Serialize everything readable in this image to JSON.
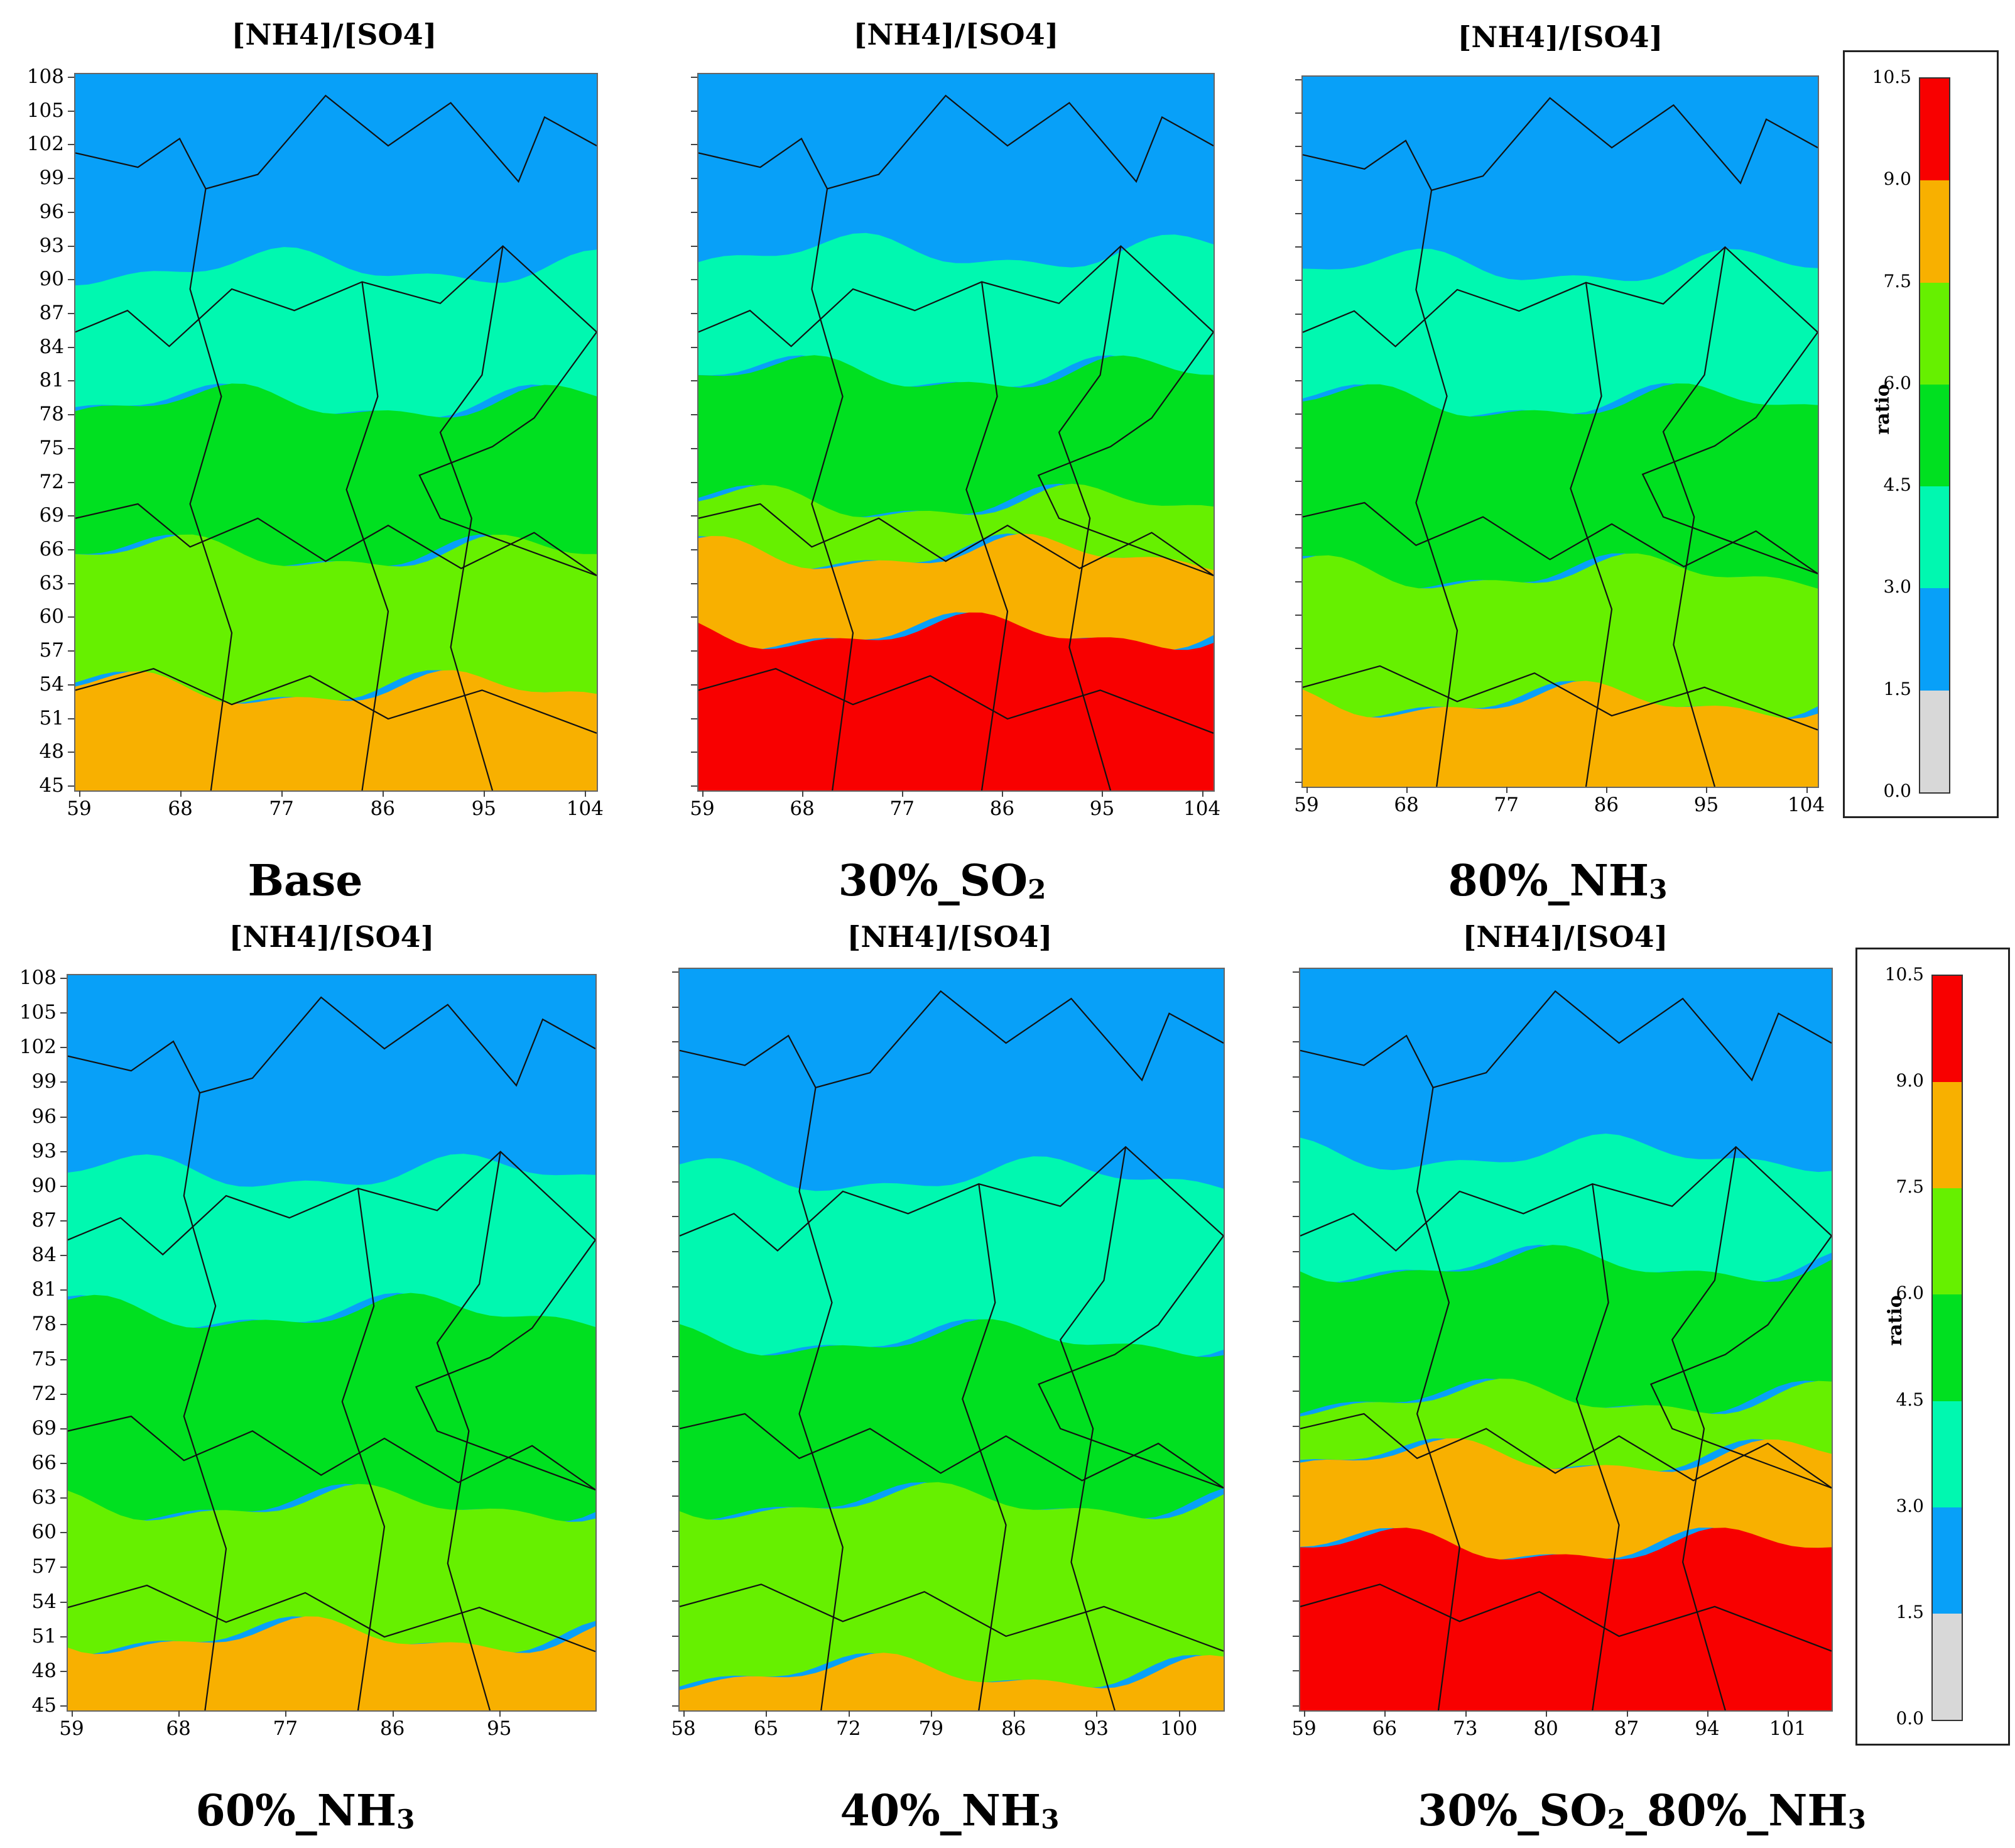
{
  "palette": {
    "gray": "#d8d8d8",
    "blue": "#08a0f8",
    "teal": "#00f8b0",
    "green": "#00e020",
    "yellowgreen": "#66f000",
    "orange": "#f8b000",
    "red": "#f80000"
  },
  "legend": {
    "title": "ratio",
    "labels": [
      "10.5",
      "9.0",
      "7.5",
      "6.0",
      "4.5",
      "3.0",
      "1.5",
      "0.0"
    ],
    "colors_top_to_bottom": [
      "#f80000",
      "#f8b000",
      "#66f000",
      "#00e020",
      "#00f8b0",
      "#08a0f8",
      "#d8d8d8"
    ]
  },
  "y_ticks": [
    "108",
    "105",
    "102",
    "99",
    "96",
    "93",
    "90",
    "87",
    "84",
    "81",
    "78",
    "75",
    "72",
    "69",
    "66",
    "63",
    "60",
    "57",
    "54",
    "51",
    "48",
    "45"
  ],
  "panels": [
    {
      "title": "[NH4]/[SO4]",
      "caption_main": "Base",
      "caption_sub": "",
      "caption_tail": "",
      "x_ticks": [
        "59",
        "68",
        "77",
        "86",
        "95",
        "104"
      ],
      "y_ticks_visible": true,
      "scenario": "base"
    },
    {
      "title": "[NH4]/[SO4]",
      "caption_main": "30%_SO",
      "caption_sub": "2",
      "caption_tail": "",
      "x_ticks": [
        "59",
        "68",
        "77",
        "86",
        "95",
        "104"
      ],
      "y_ticks_visible": false,
      "scenario": "so2"
    },
    {
      "title": "[NH4]/[SO4]",
      "caption_main": "80%_NH",
      "caption_sub": "3",
      "caption_tail": "",
      "x_ticks": [
        "59",
        "68",
        "77",
        "86",
        "95",
        "104"
      ],
      "y_ticks_visible": false,
      "scenario": "nh80"
    },
    {
      "title": "[NH4]/[SO4]",
      "caption_main": "60%_NH",
      "caption_sub": "3",
      "caption_tail": "",
      "x_ticks": [
        "59",
        "68",
        "77",
        "86",
        "95"
      ],
      "y_ticks_visible": true,
      "scenario": "nh60"
    },
    {
      "title": "[NH4]/[SO4]",
      "caption_main": "40%_NH",
      "caption_sub": "3",
      "caption_tail": "",
      "x_ticks": [
        "58",
        "65",
        "72",
        "79",
        "86",
        "93",
        "100"
      ],
      "y_ticks_visible": false,
      "scenario": "nh40"
    },
    {
      "title": "[NH4]/[SO4]",
      "caption_main": "30%_SO",
      "caption_sub": "2",
      "caption_tail": "_80%_NH3",
      "x_ticks": [
        "59",
        "66",
        "73",
        "80",
        "87",
        "94",
        "101"
      ],
      "y_ticks_visible": false,
      "scenario": "combo"
    }
  ]
}
